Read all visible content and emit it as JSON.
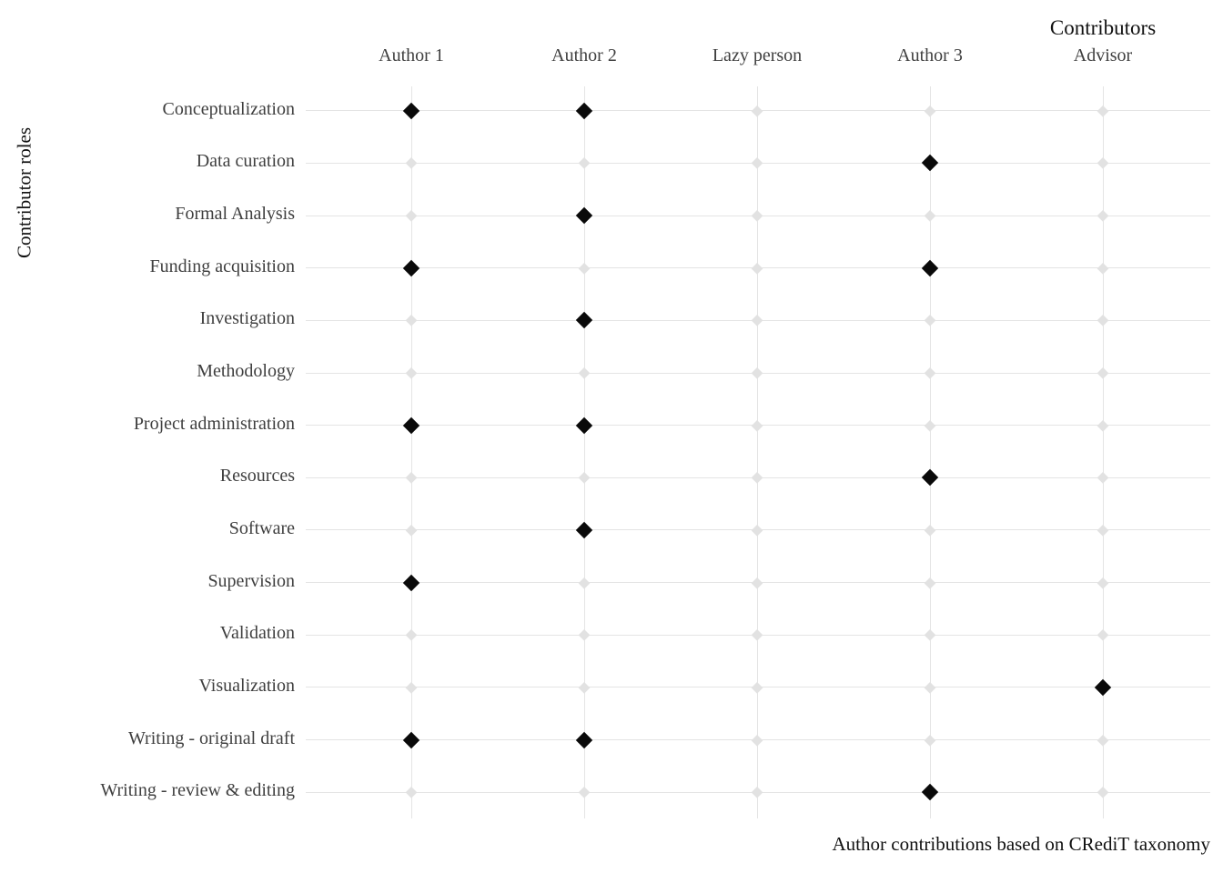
{
  "chart_data": {
    "type": "scatter",
    "marker": "diamond",
    "title": "Contributors",
    "ylabel": "Contributor roles",
    "caption": "Author contributions based on CRediT taxonomy",
    "columns": [
      "Author 1",
      "Author 2",
      "Lazy person",
      "Author 3",
      "Advisor"
    ],
    "rows": [
      "Conceptualization",
      "Data curation",
      "Formal Analysis",
      "Funding acquisition",
      "Investigation",
      "Methodology",
      "Project administration",
      "Resources",
      "Software",
      "Supervision",
      "Validation",
      "Visualization",
      "Writing - original draft",
      "Writing - review & editing"
    ],
    "matrix": [
      [
        1,
        1,
        0,
        0,
        0
      ],
      [
        0,
        0,
        0,
        1,
        0
      ],
      [
        0,
        1,
        0,
        0,
        0
      ],
      [
        1,
        0,
        0,
        1,
        0
      ],
      [
        0,
        1,
        0,
        0,
        0
      ],
      [
        0,
        0,
        0,
        0,
        0
      ],
      [
        1,
        1,
        0,
        0,
        0
      ],
      [
        0,
        0,
        0,
        1,
        0
      ],
      [
        0,
        1,
        0,
        0,
        0
      ],
      [
        1,
        0,
        0,
        0,
        0
      ],
      [
        0,
        0,
        0,
        0,
        0
      ],
      [
        0,
        0,
        0,
        0,
        1
      ],
      [
        1,
        1,
        0,
        0,
        0
      ],
      [
        0,
        0,
        0,
        1,
        0
      ]
    ],
    "grid": "both"
  },
  "colors": {
    "marker_filled": "#0a0a0a",
    "marker_empty": "#e2e2e2",
    "gridline": "#e4e4e4",
    "label_text": "#3f3f3f",
    "title_text": "#111111",
    "background": "#ffffff"
  }
}
